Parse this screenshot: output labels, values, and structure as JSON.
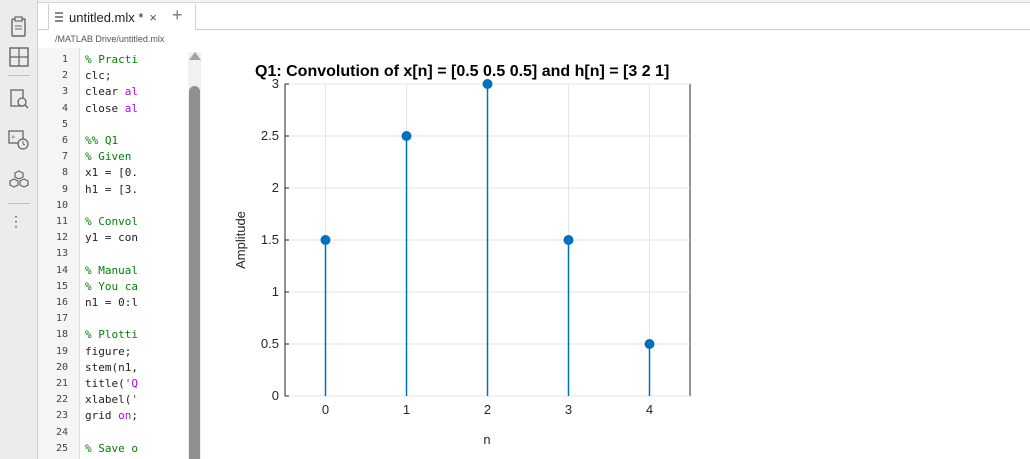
{
  "tab": {
    "title": "untitled.mlx *",
    "close": "×",
    "add": "+"
  },
  "path": "/MATLAB Drive/untitled.mlx",
  "sidebar": {
    "icons": [
      "clipboard-icon",
      "grid-layout-icon",
      "magnify-page-icon",
      "history-icon",
      "addons-cubes-icon"
    ],
    "more": "⋮"
  },
  "editor": {
    "line_numbers": [
      "1",
      "2",
      "3",
      "4",
      "5",
      "6",
      "7",
      "8",
      "9",
      "10",
      "11",
      "12",
      "13",
      "14",
      "15",
      "16",
      "17",
      "18",
      "19",
      "20",
      "21",
      "22",
      "23",
      "24",
      "25"
    ],
    "lines": [
      {
        "n": 1,
        "parts": [
          {
            "t": "% Practi",
            "c": "cmt"
          }
        ]
      },
      {
        "n": 2,
        "parts": [
          {
            "t": "clc;",
            "c": ""
          }
        ]
      },
      {
        "n": 3,
        "parts": [
          {
            "t": "clear ",
            "c": ""
          },
          {
            "t": "al",
            "c": "str"
          }
        ]
      },
      {
        "n": 4,
        "parts": [
          {
            "t": "close ",
            "c": ""
          },
          {
            "t": "al",
            "c": "str"
          }
        ]
      },
      {
        "n": 6,
        "parts": [
          {
            "t": "%% Q1",
            "c": "cmt"
          }
        ]
      },
      {
        "n": 7,
        "parts": [
          {
            "t": "% Given",
            "c": "cmt"
          }
        ]
      },
      {
        "n": 8,
        "parts": [
          {
            "t": "x1 = [0.",
            "c": ""
          }
        ]
      },
      {
        "n": 9,
        "parts": [
          {
            "t": "h1 = [3.",
            "c": ""
          }
        ]
      },
      {
        "n": 11,
        "parts": [
          {
            "t": "% Convol",
            "c": "cmt"
          }
        ]
      },
      {
        "n": 12,
        "parts": [
          {
            "t": "y1 = con",
            "c": ""
          }
        ]
      },
      {
        "n": 14,
        "parts": [
          {
            "t": "% Manual",
            "c": "cmt"
          }
        ]
      },
      {
        "n": 15,
        "parts": [
          {
            "t": "% You ca",
            "c": "cmt"
          }
        ]
      },
      {
        "n": 16,
        "parts": [
          {
            "t": "n1 = 0:l",
            "c": ""
          }
        ]
      },
      {
        "n": 18,
        "parts": [
          {
            "t": "% Plotti",
            "c": "cmt"
          }
        ]
      },
      {
        "n": 19,
        "parts": [
          {
            "t": "figure;",
            "c": ""
          }
        ]
      },
      {
        "n": 20,
        "parts": [
          {
            "t": "stem(n1,",
            "c": ""
          }
        ]
      },
      {
        "n": 21,
        "parts": [
          {
            "t": "title(",
            "c": ""
          },
          {
            "t": "'Q",
            "c": "str"
          }
        ]
      },
      {
        "n": 22,
        "parts": [
          {
            "t": "xlabel(",
            "c": ""
          },
          {
            "t": "'",
            "c": "str"
          }
        ]
      },
      {
        "n": 23,
        "parts": [
          {
            "t": "grid ",
            "c": ""
          },
          {
            "t": "on",
            "c": "str"
          },
          {
            "t": ";",
            "c": ""
          }
        ]
      },
      {
        "n": 25,
        "parts": [
          {
            "t": "% Save o",
            "c": "cmt"
          }
        ]
      }
    ]
  },
  "chart_data": {
    "type": "stem",
    "title": "Q1: Convolution of x[n] = [0.5 0.5 0.5] and h[n] = [3 2 1]",
    "xlabel": "n",
    "ylabel": "Amplitude",
    "x": [
      0,
      1,
      2,
      3,
      4
    ],
    "y": [
      1.5,
      2.5,
      3,
      1.5,
      0.5
    ],
    "xlim": [
      -0.5,
      4.5
    ],
    "ylim": [
      0,
      3
    ],
    "xticks": [
      "0",
      "1",
      "2",
      "3",
      "4"
    ],
    "yticks": [
      "0",
      "0.5",
      "1",
      "1.5",
      "2",
      "2.5",
      "3"
    ],
    "grid": true,
    "color": "#0072bd"
  }
}
